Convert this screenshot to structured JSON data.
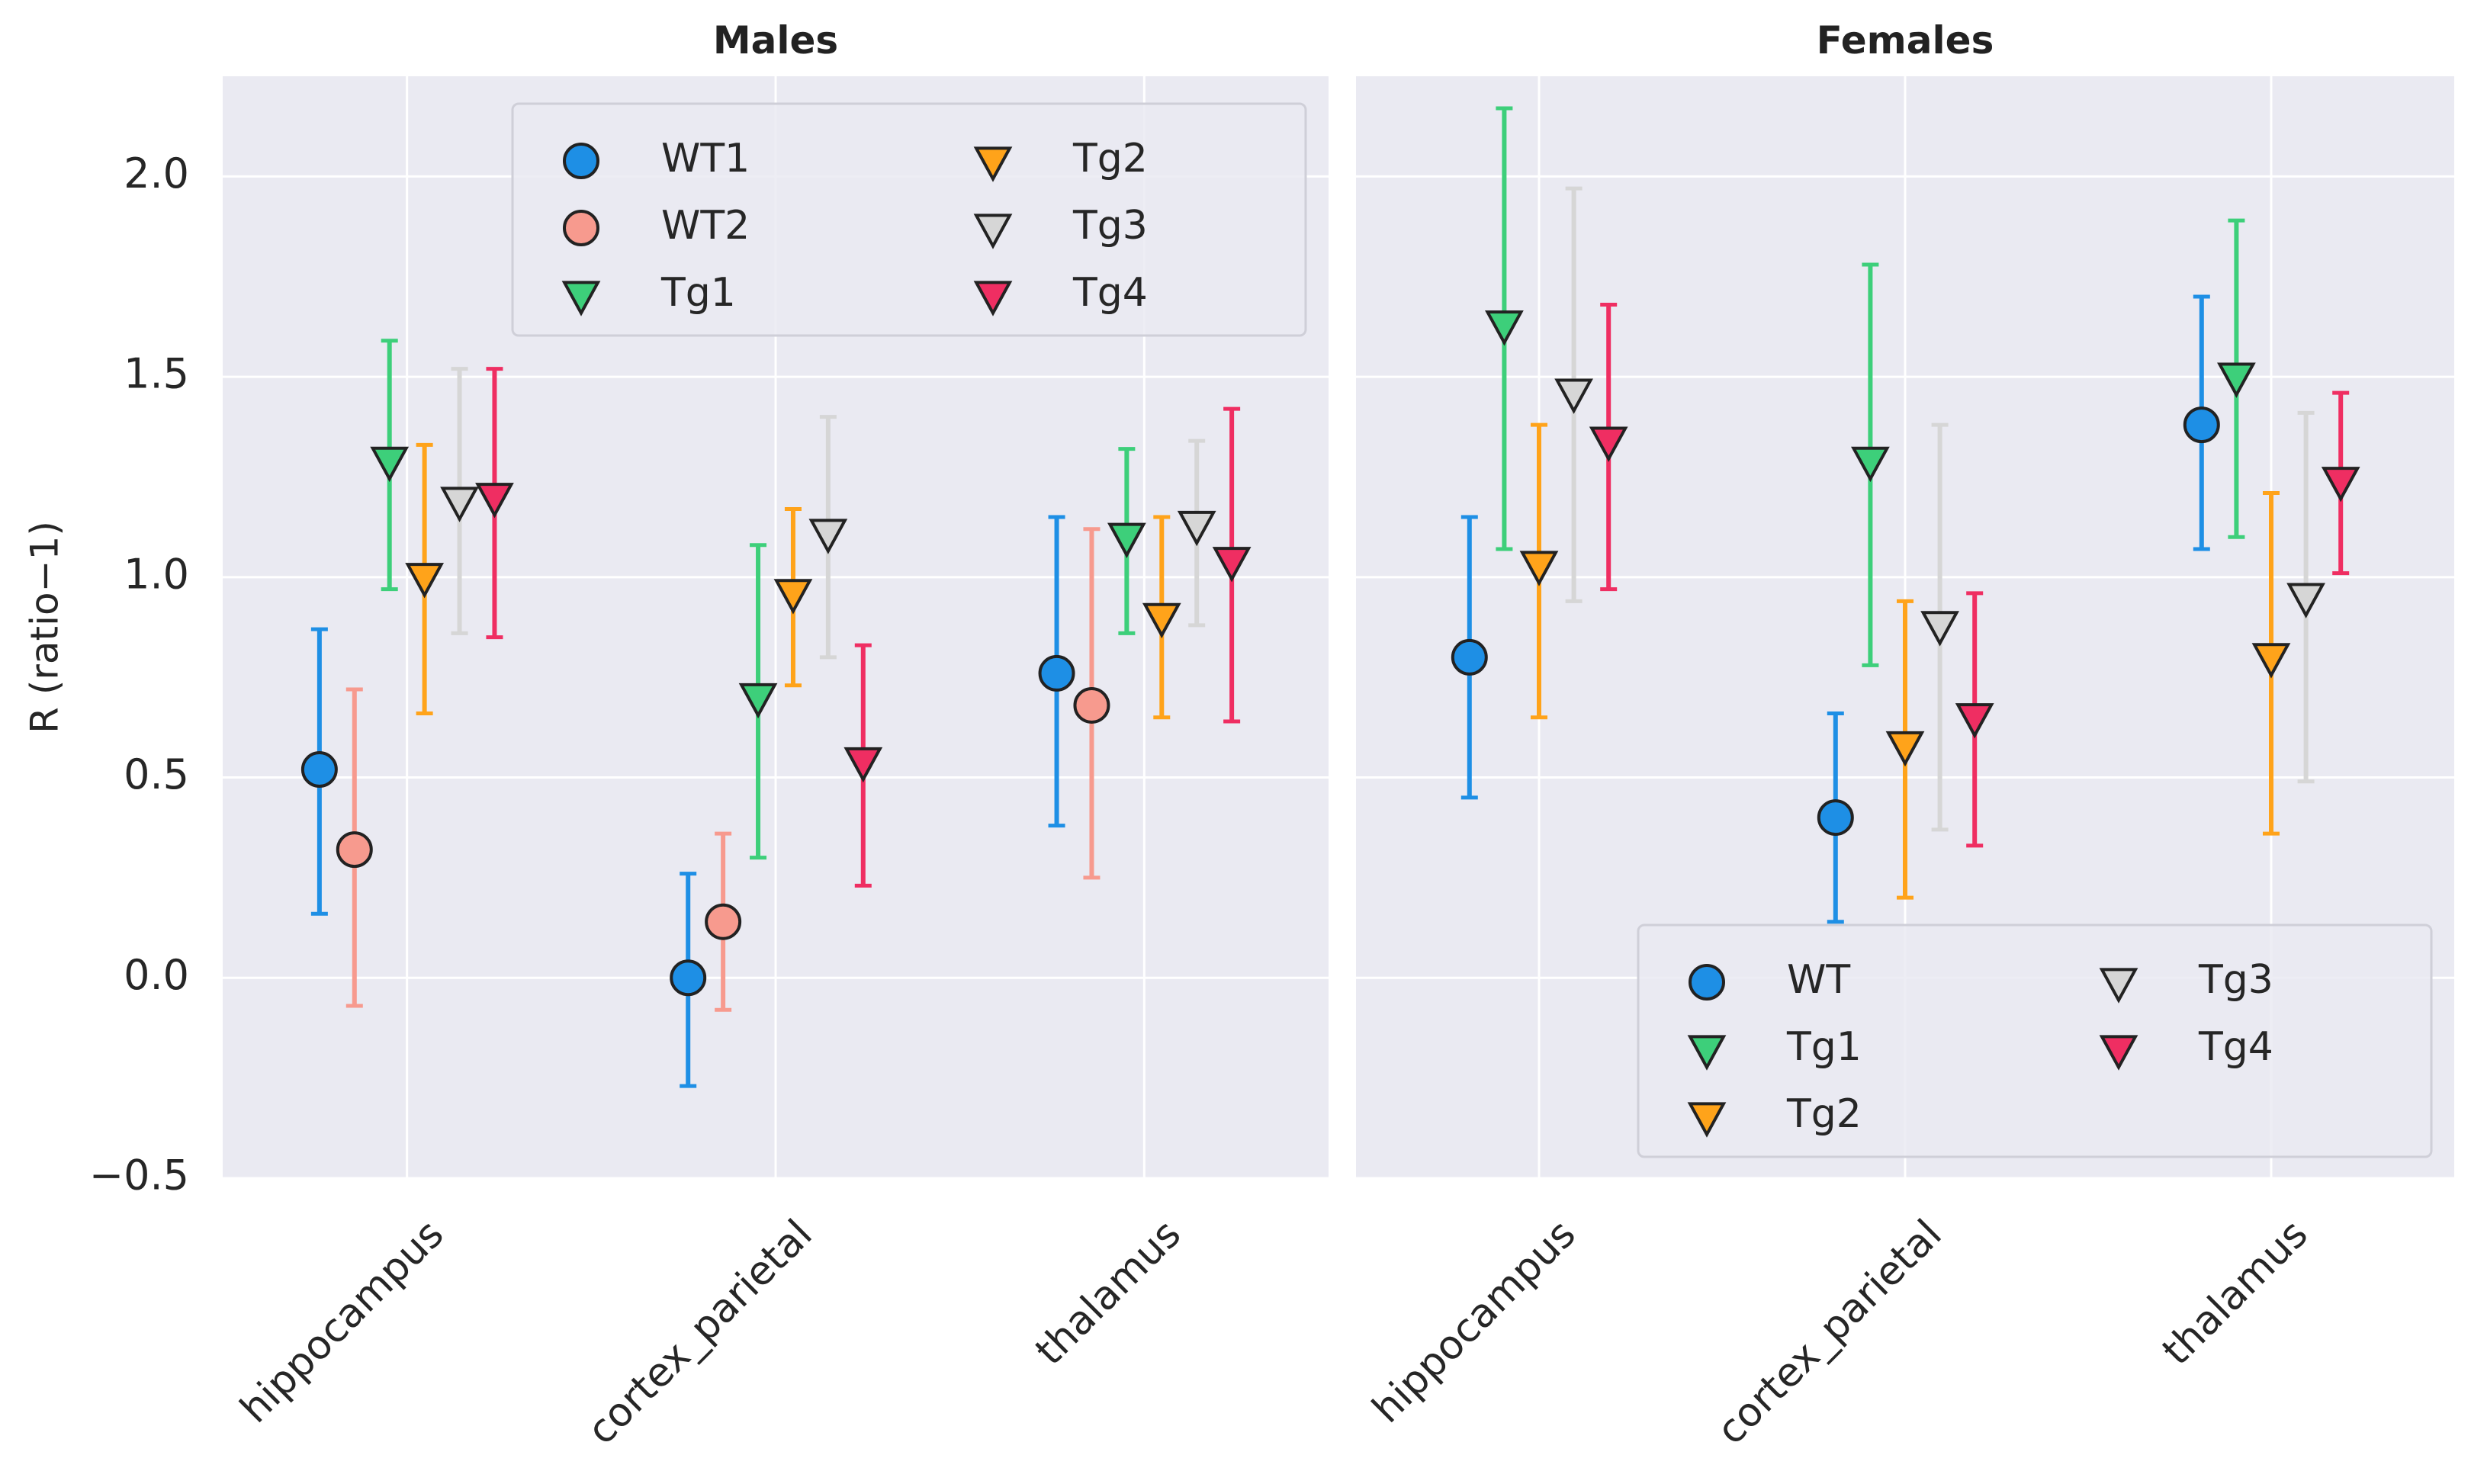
{
  "chart_data": {
    "type": "scatter",
    "ylabel": "R (ratio−1)",
    "ylim": [
      -0.5,
      2.25
    ],
    "yticks": [
      -0.5,
      0.0,
      0.5,
      1.0,
      1.5,
      2.0
    ],
    "ytick_labels": [
      "−0.5",
      "0.0",
      "0.5",
      "1.0",
      "1.5",
      "2.0"
    ],
    "categories": [
      "hippocampus",
      "cortex_parietal",
      "thalamus"
    ],
    "grid": true,
    "colors": {
      "WT1": "#1e8fe5",
      "WT2": "#f79a8e",
      "WT": "#1e8fe5",
      "Tg1": "#3dcf7a",
      "Tg2": "#ffa31a",
      "Tg3": "#d6d6d6",
      "Tg4": "#ef2e62"
    },
    "marker_shapes": {
      "WT1": "circle",
      "WT2": "circle",
      "WT": "circle",
      "Tg1": "triangle-down",
      "Tg2": "triangle-down",
      "Tg3": "triangle-down",
      "Tg4": "triangle-down"
    },
    "panels": [
      {
        "title": "Males",
        "legend_position": "top-right",
        "legend_columns": [
          [
            "WT1",
            "WT2",
            "Tg1"
          ],
          [
            "Tg2",
            "Tg3",
            "Tg4"
          ]
        ],
        "series": [
          {
            "name": "WT1",
            "offset": -0.25,
            "values": [
              0.52,
              0.0,
              0.76
            ],
            "err_low": [
              0.16,
              -0.27,
              0.38
            ],
            "err_high": [
              0.87,
              0.26,
              1.15
            ]
          },
          {
            "name": "WT2",
            "offset": -0.15,
            "values": [
              0.32,
              0.14,
              0.68
            ],
            "err_low": [
              -0.07,
              -0.08,
              0.25
            ],
            "err_high": [
              0.72,
              0.36,
              1.12
            ]
          },
          {
            "name": "Tg1",
            "offset": -0.05,
            "values": [
              1.29,
              0.7,
              1.1
            ],
            "err_low": [
              0.97,
              0.3,
              0.86
            ],
            "err_high": [
              1.59,
              1.08,
              1.32
            ]
          },
          {
            "name": "Tg2",
            "offset": 0.05,
            "values": [
              1.0,
              0.96,
              0.9
            ],
            "err_low": [
              0.66,
              0.73,
              0.65
            ],
            "err_high": [
              1.33,
              1.17,
              1.15
            ]
          },
          {
            "name": "Tg3",
            "offset": 0.15,
            "values": [
              1.19,
              1.11,
              1.13
            ],
            "err_low": [
              0.86,
              0.8,
              0.88
            ],
            "err_high": [
              1.52,
              1.4,
              1.34
            ]
          },
          {
            "name": "Tg4",
            "offset": 0.25,
            "values": [
              1.2,
              0.54,
              1.04
            ],
            "err_low": [
              0.85,
              0.23,
              0.64
            ],
            "err_high": [
              1.52,
              0.83,
              1.42
            ]
          }
        ]
      },
      {
        "title": "Females",
        "legend_position": "bottom-right",
        "legend_columns": [
          [
            "WT",
            "Tg1",
            "Tg2"
          ],
          [
            "Tg3",
            "Tg4"
          ]
        ],
        "series": [
          {
            "name": "WT",
            "offset": -0.2,
            "values": [
              0.8,
              0.4,
              1.38
            ],
            "err_low": [
              0.45,
              0.14,
              1.07
            ],
            "err_high": [
              1.15,
              0.66,
              1.7
            ]
          },
          {
            "name": "Tg1",
            "offset": -0.1,
            "values": [
              1.63,
              1.29,
              1.5
            ],
            "err_low": [
              1.07,
              0.78,
              1.1
            ],
            "err_high": [
              2.17,
              1.78,
              1.89
            ]
          },
          {
            "name": "Tg2",
            "offset": 0.0,
            "values": [
              1.03,
              0.58,
              0.8
            ],
            "err_low": [
              0.65,
              0.2,
              0.36
            ],
            "err_high": [
              1.38,
              0.94,
              1.21
            ]
          },
          {
            "name": "Tg3",
            "offset": 0.1,
            "values": [
              1.46,
              0.88,
              0.95
            ],
            "err_low": [
              0.94,
              0.37,
              0.49
            ],
            "err_high": [
              1.97,
              1.38,
              1.41
            ]
          },
          {
            "name": "Tg4",
            "offset": 0.2,
            "values": [
              1.34,
              0.65,
              1.24
            ],
            "err_low": [
              0.97,
              0.33,
              1.01
            ],
            "err_high": [
              1.68,
              0.96,
              1.46
            ]
          }
        ]
      }
    ]
  }
}
